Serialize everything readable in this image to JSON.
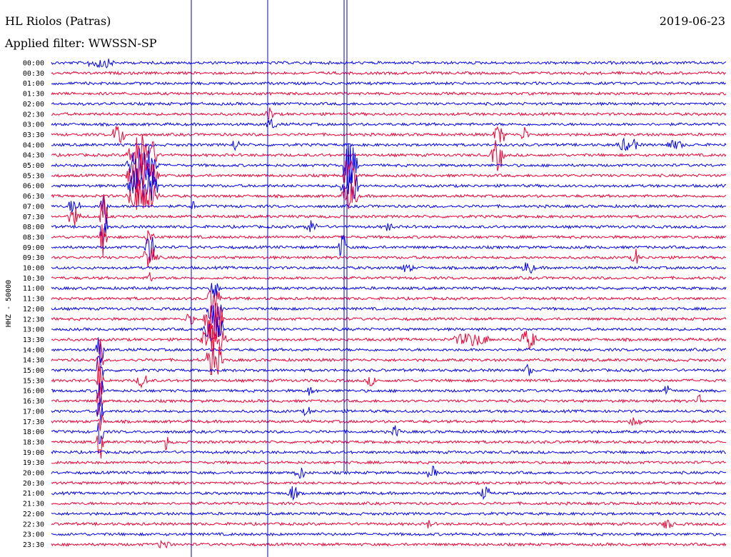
{
  "header": {
    "station": "HL Riolos (Patras)",
    "date": "2019-06-23",
    "filter": "Applied filter: WWSSN-SP"
  },
  "chart_data": {
    "type": "line",
    "title": "HL Riolos (Patras)",
    "ylabel": "HHZ - 50000",
    "row_labels": [
      "00:00",
      "00:30",
      "01:00",
      "01:30",
      "02:00",
      "02:30",
      "03:00",
      "03:30",
      "04:00",
      "04:30",
      "05:00",
      "05:30",
      "06:00",
      "06:30",
      "07:00",
      "07:30",
      "08:00",
      "08:30",
      "09:00",
      "09:30",
      "10:00",
      "10:30",
      "11:00",
      "11:30",
      "12:00",
      "12:30",
      "13:00",
      "13:30",
      "14:00",
      "14:30",
      "15:00",
      "15:30",
      "16:00",
      "16:30",
      "17:00",
      "17:30",
      "18:00",
      "18:30",
      "19:00",
      "19:30",
      "20:00",
      "20:30",
      "21:00",
      "21:30",
      "22:00",
      "22:30",
      "23:00",
      "23:30"
    ],
    "colors": {
      "even_rows": "#0000ee",
      "odd_rows": "#ee0033"
    },
    "grid": false
  }
}
